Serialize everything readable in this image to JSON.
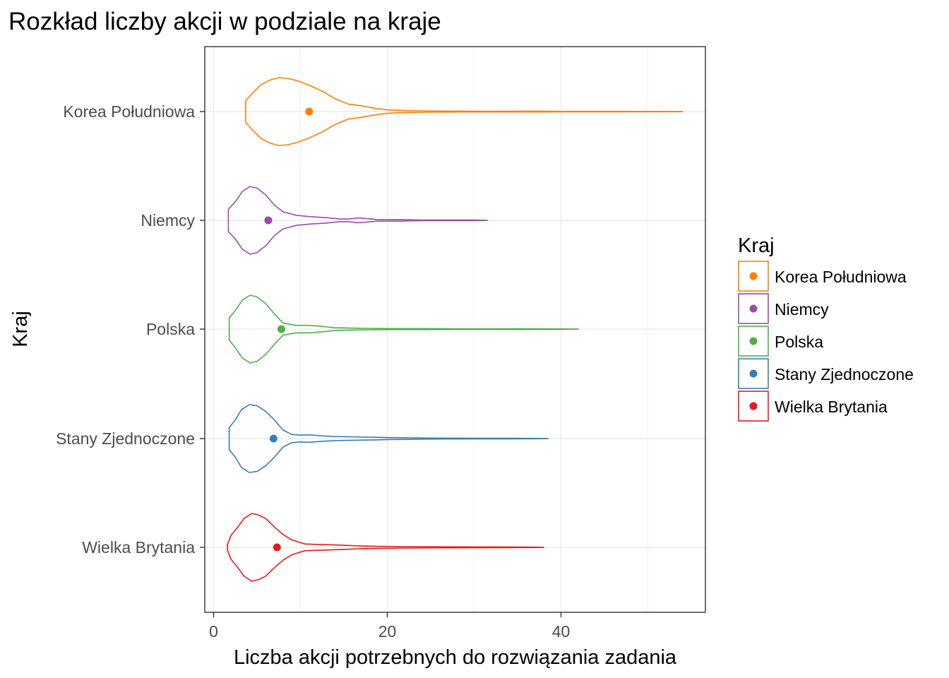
{
  "chart_data": {
    "type": "violin",
    "title": "Rozkład liczby akcji w podziale na kraje",
    "xlabel": "Liczba akcji potrzebnych do rozwiązania zadania",
    "ylabel": "Kraj",
    "xlim": [
      -1,
      56
    ],
    "x_ticks": [
      0,
      20,
      40
    ],
    "x_minor_ticks": [
      10,
      30,
      50
    ],
    "grid": true,
    "legend": {
      "title": "Kraj",
      "placement": "right",
      "entries": [
        "Korea Południowa",
        "Niemcy",
        "Polska",
        "Stany Zjednoczone",
        "Wielka Brytania"
      ]
    },
    "categories": [
      "Korea Południowa",
      "Niemcy",
      "Polska",
      "Stany Zjednoczone",
      "Wielka Brytania"
    ],
    "series": [
      {
        "name": "Korea Południowa",
        "color": "#ff7f00",
        "mean": 11,
        "min": 3.7,
        "max": 54,
        "density": [
          [
            3.7,
            0.32
          ],
          [
            4.5,
            0.55
          ],
          [
            5.5,
            0.8
          ],
          [
            6.5,
            0.93
          ],
          [
            7.5,
            1.0
          ],
          [
            8.5,
            0.98
          ],
          [
            9.5,
            0.92
          ],
          [
            11,
            0.78
          ],
          [
            12.5,
            0.6
          ],
          [
            14,
            0.38
          ],
          [
            15.5,
            0.22
          ],
          [
            17,
            0.17
          ],
          [
            18.5,
            0.1
          ],
          [
            20,
            0.05
          ],
          [
            22,
            0.03
          ],
          [
            24,
            0.02
          ],
          [
            26,
            0.015
          ],
          [
            30,
            0.01
          ],
          [
            38,
            0.012
          ],
          [
            40,
            0.006
          ],
          [
            46,
            0.006
          ],
          [
            54,
            0.004
          ]
        ]
      },
      {
        "name": "Niemcy",
        "color": "#984ea3",
        "mean": 6.3,
        "min": 1.7,
        "max": 31.5,
        "density": [
          [
            1.7,
            0.33
          ],
          [
            2.5,
            0.55
          ],
          [
            3.3,
            0.85
          ],
          [
            4.2,
            1.0
          ],
          [
            5,
            0.95
          ],
          [
            6,
            0.75
          ],
          [
            7,
            0.45
          ],
          [
            8,
            0.25
          ],
          [
            9.5,
            0.15
          ],
          [
            11,
            0.11
          ],
          [
            13,
            0.08
          ],
          [
            14.5,
            0.04
          ],
          [
            15.5,
            0.04
          ],
          [
            16.7,
            0.07
          ],
          [
            17.7,
            0.05
          ],
          [
            19,
            0.02
          ],
          [
            21,
            0.025
          ],
          [
            24,
            0.01
          ],
          [
            27,
            0.008
          ],
          [
            29,
            0.008
          ],
          [
            30,
            0.01
          ],
          [
            31.5,
            0.003
          ]
        ]
      },
      {
        "name": "Polska",
        "color": "#4daf4a",
        "mean": 7.8,
        "min": 1.8,
        "max": 42,
        "density": [
          [
            1.8,
            0.33
          ],
          [
            2.5,
            0.55
          ],
          [
            3.3,
            0.85
          ],
          [
            4.2,
            1.0
          ],
          [
            5,
            0.95
          ],
          [
            6,
            0.75
          ],
          [
            7,
            0.45
          ],
          [
            8,
            0.18
          ],
          [
            9.5,
            0.11
          ],
          [
            11,
            0.11
          ],
          [
            12.5,
            0.08
          ],
          [
            14,
            0.04
          ],
          [
            16,
            0.03
          ],
          [
            18,
            0.02
          ],
          [
            20,
            0.015
          ],
          [
            24,
            0.014
          ],
          [
            28,
            0.01
          ],
          [
            32,
            0.01
          ],
          [
            35,
            0.012
          ],
          [
            38,
            0.008
          ],
          [
            42,
            0.003
          ]
        ]
      },
      {
        "name": "Stany Zjednoczone",
        "color": "#377eb8",
        "mean": 6.9,
        "min": 1.8,
        "max": 38.5,
        "density": [
          [
            1.8,
            0.33
          ],
          [
            2.5,
            0.55
          ],
          [
            3.2,
            0.85
          ],
          [
            4.1,
            1.0
          ],
          [
            5,
            0.97
          ],
          [
            6,
            0.8
          ],
          [
            7,
            0.55
          ],
          [
            8,
            0.25
          ],
          [
            9,
            0.12
          ],
          [
            10,
            0.1
          ],
          [
            11,
            0.11
          ],
          [
            12.5,
            0.08
          ],
          [
            14,
            0.06
          ],
          [
            16,
            0.05
          ],
          [
            18.5,
            0.04
          ],
          [
            20,
            0.03
          ],
          [
            22,
            0.025
          ],
          [
            25,
            0.015
          ],
          [
            28,
            0.012
          ],
          [
            31,
            0.01
          ],
          [
            34,
            0.01
          ],
          [
            38.5,
            0.003
          ]
        ]
      },
      {
        "name": "Wielka Brytania",
        "color": "#e41a1c",
        "mean": 7.3,
        "min": 1.6,
        "max": 38,
        "density": [
          [
            1.6,
            0.08
          ],
          [
            2,
            0.35
          ],
          [
            2.8,
            0.6
          ],
          [
            3.5,
            0.85
          ],
          [
            4.4,
            1.0
          ],
          [
            5.2,
            0.95
          ],
          [
            6,
            0.85
          ],
          [
            7,
            0.6
          ],
          [
            8,
            0.38
          ],
          [
            9,
            0.22
          ],
          [
            10.5,
            0.1
          ],
          [
            11.5,
            0.09
          ],
          [
            13,
            0.08
          ],
          [
            15,
            0.06
          ],
          [
            17,
            0.04
          ],
          [
            19,
            0.03
          ],
          [
            22,
            0.02
          ],
          [
            26,
            0.015
          ],
          [
            30,
            0.012
          ],
          [
            34,
            0.01
          ],
          [
            38,
            0.003
          ]
        ]
      }
    ]
  }
}
